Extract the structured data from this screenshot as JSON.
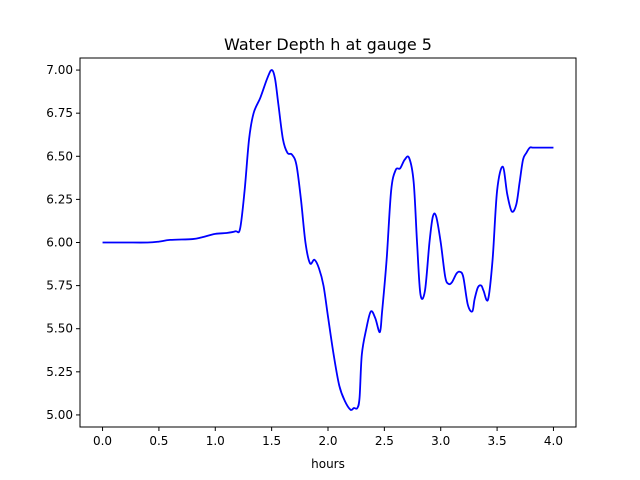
{
  "chart_data": {
    "type": "line",
    "title": "Water Depth h at gauge 5",
    "xlabel": "hours",
    "ylabel": "",
    "xlim": [
      -0.2,
      4.2
    ],
    "ylim": [
      4.93,
      7.07
    ],
    "xticks": [
      0.0,
      0.5,
      1.0,
      1.5,
      2.0,
      2.5,
      3.0,
      3.5,
      4.0
    ],
    "xtick_labels": [
      "0.0",
      "0.5",
      "1.0",
      "1.5",
      "2.0",
      "2.5",
      "3.0",
      "3.5",
      "4.0"
    ],
    "yticks": [
      5.0,
      5.25,
      5.5,
      5.75,
      6.0,
      6.25,
      6.5,
      6.75,
      7.0
    ],
    "ytick_labels": [
      "5.00",
      "5.25",
      "5.50",
      "5.75",
      "6.00",
      "6.25",
      "6.50",
      "6.75",
      "7.00"
    ],
    "grid": false,
    "series": [
      {
        "color": "#0000ff",
        "x": [
          0.0,
          0.2,
          0.4,
          0.5,
          0.6,
          0.8,
          0.88,
          1.0,
          1.1,
          1.18,
          1.22,
          1.26,
          1.3,
          1.34,
          1.4,
          1.46,
          1.5,
          1.53,
          1.56,
          1.6,
          1.64,
          1.68,
          1.72,
          1.76,
          1.8,
          1.84,
          1.88,
          1.92,
          1.96,
          2.0,
          2.05,
          2.1,
          2.15,
          2.2,
          2.23,
          2.26,
          2.28,
          2.3,
          2.34,
          2.38,
          2.42,
          2.46,
          2.48,
          2.52,
          2.56,
          2.6,
          2.64,
          2.68,
          2.72,
          2.76,
          2.79,
          2.82,
          2.86,
          2.9,
          2.93,
          2.96,
          3.0,
          3.04,
          3.07,
          3.1,
          3.14,
          3.17,
          3.2,
          3.24,
          3.28,
          3.3,
          3.33,
          3.36,
          3.38,
          3.42,
          3.46,
          3.5,
          3.55,
          3.59,
          3.63,
          3.67,
          3.7,
          3.73,
          3.76,
          3.79,
          3.82,
          3.86,
          3.9,
          3.94,
          3.97,
          4.0
        ],
        "y": [
          6.0,
          6.0,
          6.0,
          6.005,
          6.015,
          6.02,
          6.03,
          6.05,
          6.055,
          6.065,
          6.08,
          6.3,
          6.6,
          6.75,
          6.84,
          6.95,
          7.0,
          6.95,
          6.8,
          6.6,
          6.52,
          6.51,
          6.45,
          6.25,
          6.0,
          5.88,
          5.9,
          5.85,
          5.75,
          5.57,
          5.35,
          5.17,
          5.08,
          5.03,
          5.04,
          5.04,
          5.1,
          5.35,
          5.5,
          5.6,
          5.56,
          5.48,
          5.6,
          5.9,
          6.3,
          6.42,
          6.43,
          6.48,
          6.49,
          6.35,
          6.0,
          5.7,
          5.72,
          6.0,
          6.15,
          6.15,
          6.0,
          5.8,
          5.76,
          5.77,
          5.82,
          5.83,
          5.8,
          5.64,
          5.6,
          5.67,
          5.74,
          5.75,
          5.72,
          5.67,
          5.9,
          6.3,
          6.44,
          6.28,
          6.18,
          6.22,
          6.35,
          6.48,
          6.52,
          6.55,
          6.55,
          6.55,
          6.55,
          6.55,
          6.55,
          6.55
        ]
      }
    ]
  }
}
